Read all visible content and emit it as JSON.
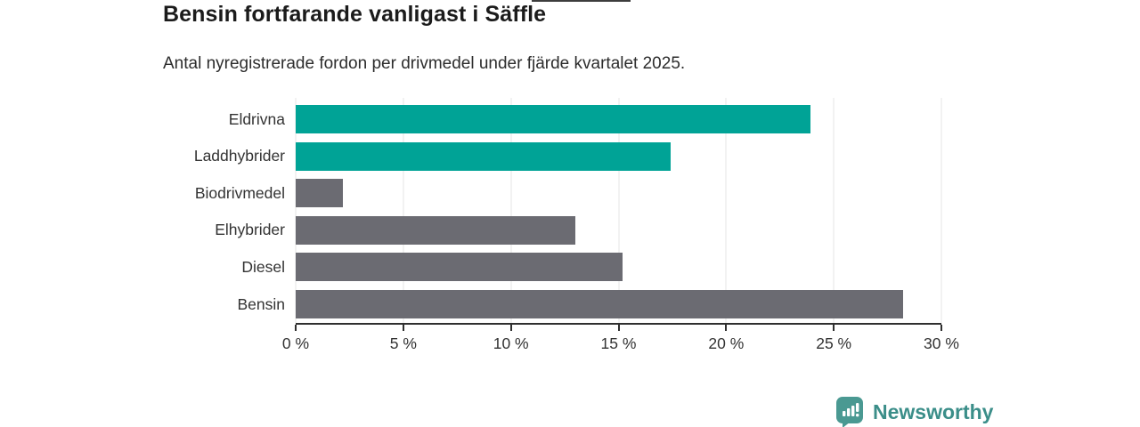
{
  "chart_data": {
    "type": "bar",
    "orientation": "horizontal",
    "title": "Bensin fortfarande vanligast i Säffle",
    "subtitle": "Antal nyregistrerade fordon per drivmedel under fjärde kvartalet 2025.",
    "categories": [
      "Eldrivna",
      "Laddhybrider",
      "Biodrivmedel",
      "Elhybrider",
      "Diesel",
      "Bensin"
    ],
    "values": [
      23.9,
      17.4,
      2.2,
      13.0,
      15.2,
      28.2
    ],
    "unit": "%",
    "bar_colors": [
      "#00a396",
      "#00a396",
      "#6b6b72",
      "#6b6b72",
      "#6b6b72",
      "#6b6b72"
    ],
    "highlight_color": "#00a396",
    "default_color": "#6b6b72",
    "xlabel": "",
    "ylabel": "",
    "xlim": [
      0,
      30
    ],
    "x_ticks": [
      0,
      5,
      10,
      15,
      20,
      25,
      30
    ],
    "x_tick_labels": [
      "0 %",
      "5 %",
      "10 %",
      "15 %",
      "20 %",
      "25 %",
      "30 %"
    ],
    "grid": true,
    "legend": false
  },
  "branding": {
    "logo_text": "Newsworthy",
    "logo_icon": "bar-chart-speech-bubble-icon",
    "text_color": "#3b8e89",
    "icon_color": "#4a9992"
  }
}
